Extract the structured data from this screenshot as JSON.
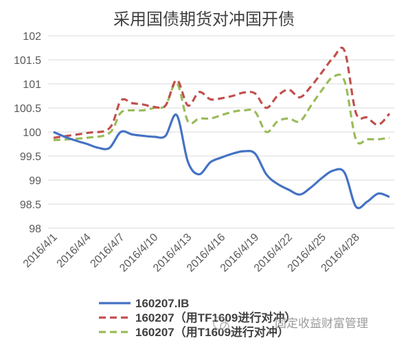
{
  "chart_data": {
    "type": "line",
    "title": "采用国债期货对冲国开债",
    "x_tick_labels": [
      "2016/4/1",
      "2016/4/4",
      "2016/4/7",
      "2016/4/10",
      "2016/4/13",
      "2016/4/16",
      "2016/4/19",
      "2016/4/22",
      "2016/4/25",
      "2016/4/28"
    ],
    "ylim": [
      98,
      102
    ],
    "y_ticks": [
      98,
      98.5,
      99,
      99.5,
      100,
      100.5,
      101,
      101.5,
      102
    ],
    "y_tick_labels": [
      "98",
      "98.5",
      "99",
      "99.5",
      "100",
      "100.5",
      "101",
      "101.5",
      "102"
    ],
    "grid": true,
    "legend_position": "bottom",
    "series": [
      {
        "name": "160207.IB",
        "color": "#4472c4",
        "style": "solid",
        "points": [
          [
            "2016/4/1",
            100.0
          ],
          [
            "2016/4/2",
            99.9
          ],
          [
            "2016/4/3",
            99.82
          ],
          [
            "2016/4/4",
            99.75
          ],
          [
            "2016/4/5",
            99.67
          ],
          [
            "2016/4/6",
            99.67
          ],
          [
            "2016/4/7",
            100.0
          ],
          [
            "2016/4/8",
            99.95
          ],
          [
            "2016/4/9",
            99.92
          ],
          [
            "2016/4/10",
            99.9
          ],
          [
            "2016/4/11",
            99.92
          ],
          [
            "2016/4/12",
            100.35
          ],
          [
            "2016/4/13",
            99.38
          ],
          [
            "2016/4/14",
            99.12
          ],
          [
            "2016/4/15",
            99.37
          ],
          [
            "2016/4/16",
            99.47
          ],
          [
            "2016/4/17",
            99.55
          ],
          [
            "2016/4/18",
            99.6
          ],
          [
            "2016/4/19",
            99.55
          ],
          [
            "2016/4/20",
            99.12
          ],
          [
            "2016/4/21",
            98.92
          ],
          [
            "2016/4/22",
            98.8
          ],
          [
            "2016/4/23",
            98.7
          ],
          [
            "2016/4/24",
            98.85
          ],
          [
            "2016/4/25",
            99.05
          ],
          [
            "2016/4/26",
            99.2
          ],
          [
            "2016/4/27",
            99.15
          ],
          [
            "2016/4/28",
            98.45
          ],
          [
            "2016/4/29",
            98.55
          ],
          [
            "2016/4/30",
            98.72
          ],
          [
            "2016/5/1",
            98.65
          ]
        ]
      },
      {
        "name": "160207（用TF1609进行对冲）",
        "color": "#c0504d",
        "style": "dashed",
        "points": [
          [
            "2016/4/1",
            99.88
          ],
          [
            "2016/4/4",
            99.98
          ],
          [
            "2016/4/6",
            100.08
          ],
          [
            "2016/4/7",
            100.65
          ],
          [
            "2016/4/8",
            100.6
          ],
          [
            "2016/4/9",
            100.57
          ],
          [
            "2016/4/10",
            100.52
          ],
          [
            "2016/4/11",
            100.55
          ],
          [
            "2016/4/12",
            101.08
          ],
          [
            "2016/4/13",
            100.55
          ],
          [
            "2016/4/14",
            100.83
          ],
          [
            "2016/4/15",
            100.68
          ],
          [
            "2016/4/16",
            100.7
          ],
          [
            "2016/4/17",
            100.75
          ],
          [
            "2016/4/18",
            100.82
          ],
          [
            "2016/4/19",
            100.8
          ],
          [
            "2016/4/20",
            100.5
          ],
          [
            "2016/4/21",
            100.75
          ],
          [
            "2016/4/22",
            100.88
          ],
          [
            "2016/4/23",
            100.72
          ],
          [
            "2016/4/24",
            100.95
          ],
          [
            "2016/4/25",
            101.25
          ],
          [
            "2016/4/26",
            101.55
          ],
          [
            "2016/4/27",
            101.68
          ],
          [
            "2016/4/28",
            100.4
          ],
          [
            "2016/4/29",
            100.3
          ],
          [
            "2016/4/30",
            100.15
          ],
          [
            "2016/5/1",
            100.38
          ]
        ]
      },
      {
        "name": "160207（用T1609进行对冲）",
        "color": "#9bbb59",
        "style": "dashed",
        "points": [
          [
            "2016/4/1",
            99.83
          ],
          [
            "2016/4/4",
            99.88
          ],
          [
            "2016/4/6",
            99.98
          ],
          [
            "2016/4/7",
            100.4
          ],
          [
            "2016/4/8",
            100.45
          ],
          [
            "2016/4/9",
            100.45
          ],
          [
            "2016/4/10",
            100.5
          ],
          [
            "2016/4/11",
            100.55
          ],
          [
            "2016/4/12",
            101.02
          ],
          [
            "2016/4/13",
            100.22
          ],
          [
            "2016/4/14",
            100.28
          ],
          [
            "2016/4/15",
            100.28
          ],
          [
            "2016/4/16",
            100.35
          ],
          [
            "2016/4/17",
            100.42
          ],
          [
            "2016/4/18",
            100.45
          ],
          [
            "2016/4/19",
            100.42
          ],
          [
            "2016/4/20",
            100.0
          ],
          [
            "2016/4/21",
            100.22
          ],
          [
            "2016/4/22",
            100.28
          ],
          [
            "2016/4/23",
            100.22
          ],
          [
            "2016/4/24",
            100.55
          ],
          [
            "2016/4/25",
            100.88
          ],
          [
            "2016/4/26",
            101.15
          ],
          [
            "2016/4/27",
            101.05
          ],
          [
            "2016/4/28",
            99.85
          ],
          [
            "2016/4/29",
            99.85
          ],
          [
            "2016/4/30",
            99.85
          ],
          [
            "2016/5/1",
            99.88
          ]
        ]
      }
    ]
  },
  "watermark_text": "固定收益财富管理"
}
